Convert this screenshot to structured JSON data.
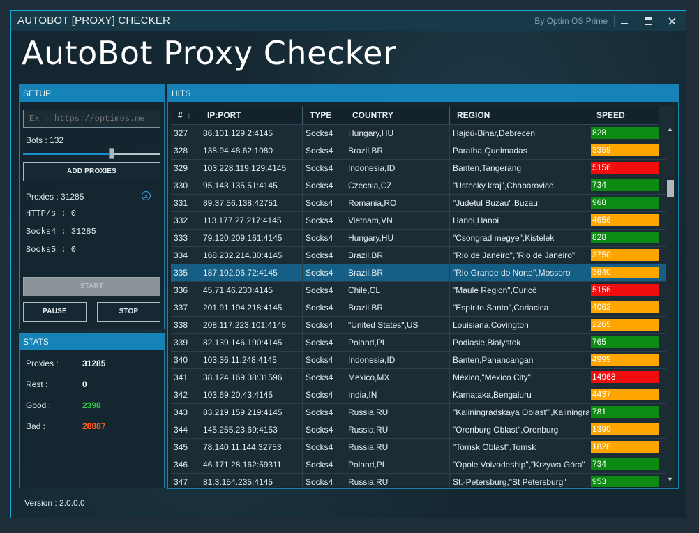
{
  "window": {
    "title": "AUTOBOT [PROXY] CHECKER",
    "byline": "By Optim OS Prime",
    "minimize_label": "–",
    "maximize_label": "🗖",
    "close_label": "✕"
  },
  "app_title": "AutoBot Proxy Checker",
  "setup": {
    "header": "SETUP",
    "url_placeholder": "Ex : https://optimos.me",
    "bots_label": "Bots : 132",
    "bots_slider_fraction": 0.65,
    "add_proxies_label": "ADD PROXIES",
    "proxies_label": "Proxies : 31285",
    "clear_label": "x",
    "https_label": "HTTP/s : 0",
    "socks4_label": "Socks4 : 31285",
    "socks5_label": "Socks5 : 0",
    "start_label": "START",
    "pause_label": "PAUSE",
    "stop_label": "STOP"
  },
  "stats": {
    "header": "STATS",
    "rows": [
      {
        "label": "Proxies :",
        "value": "31285",
        "color": "#ffffff"
      },
      {
        "label": "Rest :",
        "value": "0",
        "color": "#ffffff"
      },
      {
        "label": "Good :",
        "value": "2398",
        "color": "#2fd14a"
      },
      {
        "label": "Bad :",
        "value": "28887",
        "color": "#ff5a1f"
      }
    ]
  },
  "version": "Version : 2.0.0.0",
  "hits": {
    "header": "HITS",
    "columns": [
      "#",
      "IP:PORT",
      "TYPE",
      "COUNTRY",
      "REGION",
      "SPEED"
    ],
    "sort_icon": "↑",
    "speed_colors": {
      "green": "#0c8a12",
      "orange": "#ffa500",
      "red": "#f00d0d"
    },
    "rows": [
      {
        "n": "327",
        "ip": "86.101.129.2:4145",
        "type": "Socks4",
        "country": "Hungary,HU",
        "region": "Hajdú-Bihar,Debrecen",
        "speed": "828",
        "level": "green"
      },
      {
        "n": "328",
        "ip": "138.94.48.62:1080",
        "type": "Socks4",
        "country": "Brazil,BR",
        "region": "Paraíba,Queimadas",
        "speed": "3359",
        "level": "orange"
      },
      {
        "n": "329",
        "ip": "103.228.119.129:4145",
        "type": "Socks4",
        "country": "Indonesia,ID",
        "region": "Banten,Tangerang",
        "speed": "5156",
        "level": "red"
      },
      {
        "n": "330",
        "ip": "95.143.135.51:4145",
        "type": "Socks4",
        "country": "Czechia,CZ",
        "region": "\"Ustecky kraj\",Chabarovice",
        "speed": "734",
        "level": "green"
      },
      {
        "n": "331",
        "ip": "89.37.56.138:42751",
        "type": "Socks4",
        "country": "Romania,RO",
        "region": "\"Judetul Buzau\",Buzau",
        "speed": "968",
        "level": "green"
      },
      {
        "n": "332",
        "ip": "113.177.27.217:4145",
        "type": "Socks4",
        "country": "Vietnam,VN",
        "region": "Hanoi,Hanoi",
        "speed": "4656",
        "level": "orange"
      },
      {
        "n": "333",
        "ip": "79.120.209.161:4145",
        "type": "Socks4",
        "country": "Hungary,HU",
        "region": "\"Csongrad megye\",Kistelek",
        "speed": "828",
        "level": "green"
      },
      {
        "n": "334",
        "ip": "168.232.214.30:4145",
        "type": "Socks4",
        "country": "Brazil,BR",
        "region": "\"Rio de Janeiro\",\"Rio de Janeiro\"",
        "speed": "3750",
        "level": "orange"
      },
      {
        "n": "335",
        "ip": "187.102.96.72:4145",
        "type": "Socks4",
        "country": "Brazil,BR",
        "region": "\"Rio Grande do Norte\",Mossoro",
        "speed": "3640",
        "level": "orange",
        "selected": true
      },
      {
        "n": "336",
        "ip": "45.71.46.230:4145",
        "type": "Socks4",
        "country": "Chile,CL",
        "region": "\"Maule Region\",Curicó",
        "speed": "5156",
        "level": "red"
      },
      {
        "n": "337",
        "ip": "201.91.194.218:4145",
        "type": "Socks4",
        "country": "Brazil,BR",
        "region": "\"Espírito Santo\",Cariacica",
        "speed": "4062",
        "level": "orange"
      },
      {
        "n": "338",
        "ip": "208.117.223.101:4145",
        "type": "Socks4",
        "country": "\"United States\",US",
        "region": "Louisiana,Covington",
        "speed": "2265",
        "level": "orange"
      },
      {
        "n": "339",
        "ip": "82.139.146.190:4145",
        "type": "Socks4",
        "country": "Poland,PL",
        "region": "Podlasie,Białystok",
        "speed": "765",
        "level": "green"
      },
      {
        "n": "340",
        "ip": "103.36.11.248:4145",
        "type": "Socks4",
        "country": "Indonesia,ID",
        "region": "Banten,Panancangan",
        "speed": "4999",
        "level": "orange"
      },
      {
        "n": "341",
        "ip": "38.124.169.38:31596",
        "type": "Socks4",
        "country": "Mexico,MX",
        "region": "México,\"Mexico City\"",
        "speed": "14968",
        "level": "red"
      },
      {
        "n": "342",
        "ip": "103.69.20.43:4145",
        "type": "Socks4",
        "country": "India,IN",
        "region": "Karnataka,Bengaluru",
        "speed": "4437",
        "level": "orange"
      },
      {
        "n": "343",
        "ip": "83.219.159.219:4145",
        "type": "Socks4",
        "country": "Russia,RU",
        "region": "\"Kaliningradskaya Oblast'\",Kaliningrad",
        "speed": "781",
        "level": "green"
      },
      {
        "n": "344",
        "ip": "145.255.23.69:4153",
        "type": "Socks4",
        "country": "Russia,RU",
        "region": "\"Orenburg Oblast\",Orenburg",
        "speed": "1390",
        "level": "orange"
      },
      {
        "n": "345",
        "ip": "78.140.11.144:32753",
        "type": "Socks4",
        "country": "Russia,RU",
        "region": "\"Tomsk Oblast\",Tomsk",
        "speed": "1828",
        "level": "orange"
      },
      {
        "n": "346",
        "ip": "46.171.28.162:59311",
        "type": "Socks4",
        "country": "Poland,PL",
        "region": "\"Opole Voivodeship\",\"Krzywa Góra\"",
        "speed": "734",
        "level": "green"
      },
      {
        "n": "347",
        "ip": "81.3.154.235:4145",
        "type": "Socks4",
        "country": "Russia,RU",
        "region": "St.-Petersburg,\"St Petersburg\"",
        "speed": "953",
        "level": "green"
      }
    ]
  }
}
